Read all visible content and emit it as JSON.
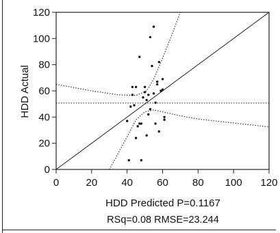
{
  "chart_data": {
    "type": "scatter",
    "xlabel": "HDD Predicted P=0.1167",
    "ylabel": "HDD Actual",
    "stats": "RSq=0.08 RMSE=23.244",
    "xlim": [
      0,
      120
    ],
    "ylim": [
      0,
      120
    ],
    "xticks": [
      0,
      20,
      40,
      60,
      80,
      100,
      120
    ],
    "yticks": [
      0,
      20,
      40,
      60,
      80,
      100,
      120
    ],
    "grid": false,
    "points": [
      {
        "x": 40,
        "y": 37
      },
      {
        "x": 41,
        "y": 7
      },
      {
        "x": 42,
        "y": 48
      },
      {
        "x": 43,
        "y": 63
      },
      {
        "x": 43,
        "y": 57
      },
      {
        "x": 44,
        "y": 49
      },
      {
        "x": 45,
        "y": 63
      },
      {
        "x": 45,
        "y": 24
      },
      {
        "x": 46,
        "y": 33
      },
      {
        "x": 47,
        "y": 86
      },
      {
        "x": 47,
        "y": 35
      },
      {
        "x": 48,
        "y": 7
      },
      {
        "x": 48,
        "y": 35
      },
      {
        "x": 49,
        "y": 55
      },
      {
        "x": 50,
        "y": 63
      },
      {
        "x": 50,
        "y": 59
      },
      {
        "x": 51,
        "y": 53
      },
      {
        "x": 51,
        "y": 26
      },
      {
        "x": 52,
        "y": 57
      },
      {
        "x": 52,
        "y": 42
      },
      {
        "x": 53,
        "y": 101
      },
      {
        "x": 53,
        "y": 46
      },
      {
        "x": 54,
        "y": 79
      },
      {
        "x": 55,
        "y": 109
      },
      {
        "x": 55,
        "y": 58
      },
      {
        "x": 56,
        "y": 51
      },
      {
        "x": 56,
        "y": 35
      },
      {
        "x": 57,
        "y": 67
      },
      {
        "x": 57,
        "y": 65
      },
      {
        "x": 58,
        "y": 82
      },
      {
        "x": 58,
        "y": 29
      },
      {
        "x": 59,
        "y": 60
      },
      {
        "x": 60,
        "y": 61
      },
      {
        "x": 60,
        "y": 69
      },
      {
        "x": 61,
        "y": 38
      },
      {
        "x": 61,
        "y": 40
      }
    ],
    "series": [
      {
        "style": "solid",
        "values": [
          [
            0,
            0
          ],
          [
            120,
            120
          ]
        ]
      },
      {
        "style": "dotted",
        "values": [
          [
            0,
            50.7
          ],
          [
            120,
            50.7
          ]
        ]
      },
      {
        "style": "dotted",
        "values": [
          [
            30,
            0
          ],
          [
            40,
            25
          ],
          [
            45,
            38
          ],
          [
            50,
            44
          ],
          [
            55,
            45.5
          ],
          [
            60,
            44
          ],
          [
            70,
            41
          ],
          [
            80,
            38.5
          ],
          [
            100,
            35.5
          ],
          [
            120,
            32.5
          ]
        ]
      },
      {
        "style": "dotted",
        "values": [
          [
            0,
            65
          ],
          [
            20,
            60
          ],
          [
            35,
            57
          ],
          [
            45,
            56.5
          ],
          [
            51,
            60
          ],
          [
            55,
            69
          ],
          [
            60,
            85
          ],
          [
            65,
            102
          ],
          [
            70,
            120
          ]
        ]
      }
    ]
  }
}
